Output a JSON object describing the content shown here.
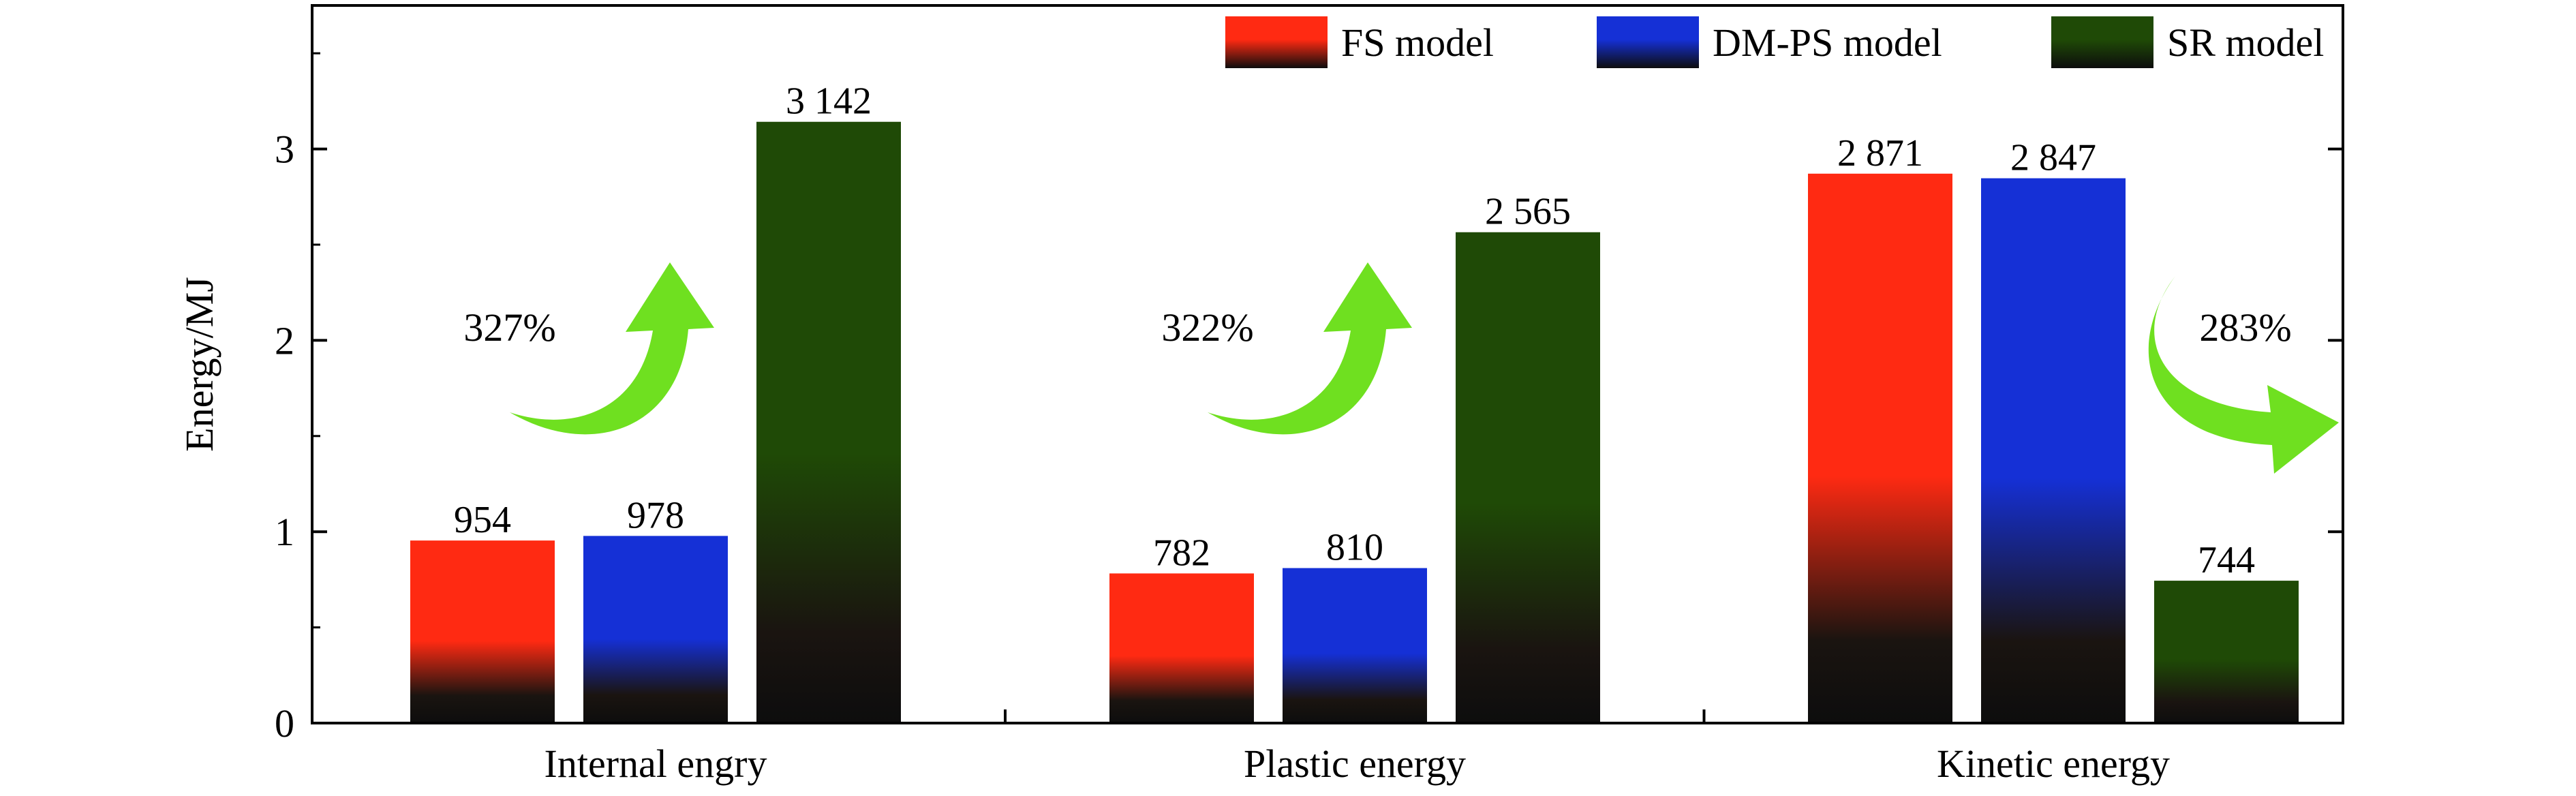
{
  "chart_data": {
    "type": "bar",
    "categories": [
      "Internal engry",
      "Plastic energy",
      "Kinetic energy"
    ],
    "series": [
      {
        "name": "FS model",
        "values": [
          954,
          782,
          2871
        ],
        "labels": [
          "954",
          "782",
          "2 871"
        ],
        "color": "#ff2a12"
      },
      {
        "name": "DM-PS model",
        "values": [
          978,
          810,
          2847
        ],
        "labels": [
          "978",
          "810",
          "2 847"
        ],
        "color": "#1530d6"
      },
      {
        "name": "SR model",
        "values": [
          3142,
          2565,
          744
        ],
        "labels": [
          "3 142",
          "2 565",
          "744"
        ],
        "color": "#1f4a06"
      }
    ],
    "ylabel": "Energy/MJ",
    "xlabel": "",
    "ylim": [
      0,
      3.75
    ],
    "yticks": [
      0,
      1,
      2,
      3
    ],
    "value_scale": 1000,
    "grid": false,
    "legend_position": "top-right",
    "annotations": [
      {
        "text": "327%",
        "category": "Internal engry",
        "direction": "up",
        "color": "#6fe020"
      },
      {
        "text": "322%",
        "category": "Plastic energy",
        "direction": "up",
        "color": "#6fe020"
      },
      {
        "text": "283%",
        "category": "Kinetic energy",
        "direction": "down",
        "color": "#6fe020"
      }
    ]
  }
}
